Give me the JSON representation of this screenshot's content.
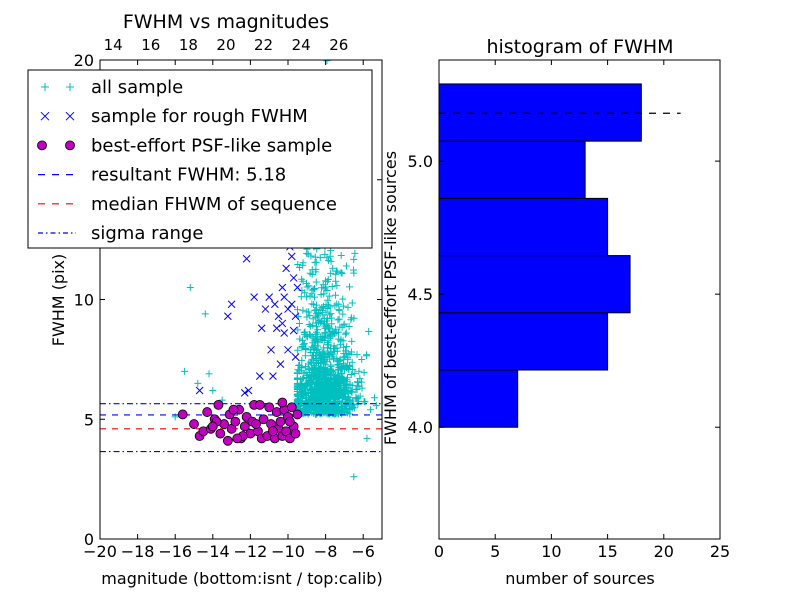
{
  "chart_data": [
    {
      "type": "scatter",
      "title": "FWHM vs magnitudes",
      "xlabel": "magnitude (bottom:isnt / top:calib)",
      "ylabel": "FWHM (pix)",
      "xlim": [
        -20,
        -5
      ],
      "ylim": [
        0,
        20
      ],
      "x_ticks": [
        -20,
        -18,
        -16,
        -14,
        -12,
        -10,
        -8,
        -6
      ],
      "x_tick_labels": [
        "−20",
        "−18",
        "−16",
        "−14",
        "−12",
        "−10",
        "−8",
        "−6"
      ],
      "y_ticks": [
        0,
        5,
        10,
        15,
        20
      ],
      "y_tick_labels": [
        "0",
        "5",
        "10",
        "15",
        "20"
      ],
      "top_axis_ticks": [
        14,
        16,
        18,
        20,
        22,
        24,
        26
      ],
      "top_axis_offset": 33.3,
      "legend_position": "upper-left",
      "legend": [
        {
          "label": "all sample",
          "marker": "plus",
          "color": "#00bfbf"
        },
        {
          "label": "sample for rough FWHM",
          "marker": "x",
          "color": "#0000ff"
        },
        {
          "label": "best-effort PSF-like sample",
          "marker": "circle",
          "color": "#bf00bf"
        },
        {
          "label": "resultant FWHM: 5.18",
          "marker": "dashed",
          "color": "#0000ff"
        },
        {
          "label": "median FHWM of sequence",
          "marker": "dashed",
          "color": "#ff0000"
        },
        {
          "label": "sigma range",
          "marker": "dashdot",
          "color": "#0000ff"
        }
      ],
      "hlines": [
        {
          "y": 5.18,
          "style": "dashed",
          "color": "#0000ff"
        },
        {
          "y": 4.6,
          "style": "dashed",
          "color": "#ff0000"
        },
        {
          "y": 5.65,
          "style": "dashdot",
          "color": "#0000ff"
        },
        {
          "y": 3.65,
          "style": "dashdot",
          "color": "#0000ff"
        }
      ],
      "series": [
        {
          "name": "sample for rough FWHM",
          "marker": "x",
          "color": "#0000ff",
          "points": [
            [
              -14.7,
              6.2
            ],
            [
              -13.2,
              9.3
            ],
            [
              -13.0,
              9.8
            ],
            [
              -12.2,
              11.7
            ],
            [
              -12.3,
              6.1
            ],
            [
              -11.5,
              6.8
            ],
            [
              -11.2,
              9.6
            ],
            [
              -11.0,
              10.1
            ],
            [
              -10.7,
              9.8
            ],
            [
              -10.5,
              9.3
            ],
            [
              -10.3,
              10.5
            ],
            [
              -10.2,
              10.1
            ],
            [
              -10.0,
              9.6
            ],
            [
              -10.1,
              11.3
            ],
            [
              -9.8,
              9.8
            ],
            [
              -9.7,
              8.7
            ],
            [
              -9.8,
              11.8
            ],
            [
              -9.6,
              7.6
            ],
            [
              -10.2,
              8.6
            ],
            [
              -10.4,
              7.3
            ],
            [
              -10.6,
              8.8
            ],
            [
              -11.4,
              8.8
            ],
            [
              -12.1,
              6.2
            ],
            [
              -10.8,
              6.8
            ],
            [
              -10.0,
              7.9
            ],
            [
              -9.7,
              10.9
            ],
            [
              -9.9,
              12.2
            ],
            [
              -10.3,
              9.0
            ],
            [
              -11.8,
              10.1
            ],
            [
              -9.6,
              9.3
            ],
            [
              -9.5,
              10.5
            ],
            [
              -10.9,
              7.9
            ]
          ]
        },
        {
          "name": "best-effort PSF-like sample",
          "marker": "circle",
          "color": "#bf00bf",
          "points": [
            [
              -15.6,
              5.2
            ],
            [
              -15.0,
              4.8
            ],
            [
              -14.7,
              4.3
            ],
            [
              -14.5,
              4.5
            ],
            [
              -14.3,
              5.3
            ],
            [
              -14.1,
              4.6
            ],
            [
              -13.9,
              5.0
            ],
            [
              -13.7,
              5.6
            ],
            [
              -13.6,
              4.4
            ],
            [
              -13.4,
              4.8
            ],
            [
              -13.2,
              4.1
            ],
            [
              -13.1,
              5.2
            ],
            [
              -13.0,
              4.6
            ],
            [
              -12.8,
              4.9
            ],
            [
              -12.6,
              5.4
            ],
            [
              -12.5,
              4.2
            ],
            [
              -12.3,
              4.7
            ],
            [
              -12.2,
              5.1
            ],
            [
              -12.0,
              4.4
            ],
            [
              -11.9,
              4.9
            ],
            [
              -11.8,
              5.6
            ],
            [
              -11.6,
              4.5
            ],
            [
              -11.4,
              4.2
            ],
            [
              -11.3,
              5.0
            ],
            [
              -11.1,
              4.3
            ],
            [
              -11.0,
              5.5
            ],
            [
              -10.9,
              4.8
            ],
            [
              -10.7,
              4.2
            ],
            [
              -10.6,
              5.3
            ],
            [
              -10.5,
              4.6
            ],
            [
              -10.4,
              4.9
            ],
            [
              -10.3,
              4.3
            ],
            [
              -10.2,
              5.4
            ],
            [
              -10.1,
              4.5
            ],
            [
              -10.0,
              5.1
            ],
            [
              -9.9,
              4.2
            ],
            [
              -9.8,
              5.5
            ],
            [
              -9.7,
              4.7
            ],
            [
              -9.6,
              4.4
            ],
            [
              -9.5,
              5.2
            ],
            [
              -13.8,
              4.9
            ],
            [
              -12.9,
              5.4
            ],
            [
              -11.7,
              4.8
            ],
            [
              -10.8,
              4.5
            ],
            [
              -14.0,
              4.7
            ],
            [
              -12.4,
              4.3
            ],
            [
              -11.5,
              5.6
            ],
            [
              -10.3,
              5.7
            ],
            [
              -9.9,
              4.9
            ],
            [
              -12.7,
              4.2
            ]
          ]
        }
      ],
      "background_sample": {
        "name": "all sample",
        "marker": "plus",
        "color": "#00bfbf",
        "count": 1200,
        "core_x_range": [
          -9.5,
          -5.3
        ],
        "core_y_range": [
          3.5,
          20.5
        ],
        "sparse_points": [
          [
            -15.2,
            10.5
          ],
          [
            -14.4,
            9.4
          ],
          [
            -15.5,
            7.0
          ],
          [
            -14.8,
            6.5
          ],
          [
            -14.2,
            6.9
          ],
          [
            -14.0,
            6.2
          ],
          [
            -16.0,
            5.1
          ],
          [
            -13.5,
            5.8
          ],
          [
            -12.5,
            5.4
          ],
          [
            -5.4,
            5.9
          ],
          [
            -6.5,
            2.6
          ],
          [
            -5.8,
            4.2
          ],
          [
            -6.9,
            8.6
          ],
          [
            -7.3,
            9.8
          ],
          [
            -6.5,
            11.1
          ]
        ]
      }
    },
    {
      "type": "bar",
      "orientation": "horizontal",
      "title": "histogram of FWHM",
      "xlabel": "number of sources",
      "ylabel": "FWHM of best-effort PSF-like sources",
      "xlim": [
        0,
        25
      ],
      "ylim": [
        3.58,
        5.38
      ],
      "x_ticks": [
        0,
        5,
        10,
        15,
        20,
        25
      ],
      "y_ticks": [
        4.0,
        4.5,
        5.0
      ],
      "y_tick_labels": [
        "4.0",
        "4.5",
        "5.0"
      ],
      "bins": [
        {
          "y0": 4.0,
          "y1": 4.215,
          "value": 7
        },
        {
          "y0": 4.215,
          "y1": 4.43,
          "value": 15
        },
        {
          "y0": 4.43,
          "y1": 4.645,
          "value": 17
        },
        {
          "y0": 4.645,
          "y1": 4.86,
          "value": 15
        },
        {
          "y0": 4.86,
          "y1": 5.075,
          "value": 13
        },
        {
          "y0": 5.075,
          "y1": 5.29,
          "value": 18
        }
      ],
      "bar_color": "#0000ff",
      "hline": {
        "y": 5.18,
        "x_end": 21.5,
        "style": "dashed",
        "color": "#000000"
      }
    }
  ]
}
